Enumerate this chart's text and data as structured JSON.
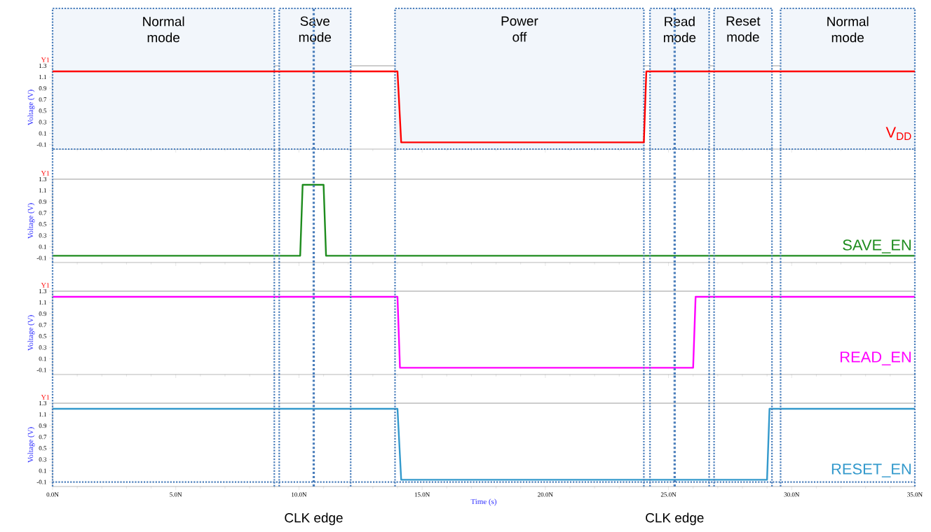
{
  "chart_data": [
    {
      "type": "line",
      "ylabel": "Voltage (V)",
      "annotations": [
        "Y1"
      ],
      "series": [
        {
          "name": "V$_{DD}$",
          "color": "#ff0000",
          "x": [
            0,
            14.0,
            14.15,
            24.0,
            24.1,
            35
          ],
          "values": [
            1.2,
            1.2,
            -0.06,
            -0.06,
            1.2,
            1.2
          ]
        }
      ],
      "xlim": [
        0,
        35
      ],
      "ylim": [
        -0.18,
        1.3
      ],
      "tick_labels": "y",
      "xticks": [
        {
          "value": 0,
          "label": null
        },
        {
          "value": 5,
          "label": null
        },
        {
          "value": 10,
          "label": null
        },
        {
          "value": 15,
          "label": null
        },
        {
          "value": 20,
          "label": null
        },
        {
          "value": 25,
          "label": null
        },
        {
          "value": 30,
          "label": null
        },
        {
          "value": 35,
          "label": null
        }
      ],
      "yticks": [
        -0.1,
        0.1,
        0.3,
        0.5,
        0.7,
        0.9,
        1.1,
        1.3
      ],
      "bands": [
        {
          "axis": "x",
          "from": 0,
          "to": 9.0,
          "label": "Normal mode",
          "color": "#f2f6fb"
        },
        {
          "axis": "x",
          "from": 9.2,
          "to": 12.1,
          "label": "Save mode",
          "color": "#f2f6fb"
        },
        {
          "axis": "x",
          "from": 13.9,
          "to": 24.0,
          "label": "Power off",
          "color": "#f2f6fb"
        },
        {
          "axis": "x",
          "from": 24.25,
          "to": 26.65,
          "label": "Read mode",
          "color": "#f2f6fb"
        },
        {
          "axis": "x",
          "from": 26.85,
          "to": 29.2,
          "label": "Reset mode",
          "color": "#f2f6fb"
        },
        {
          "axis": "x",
          "from": 29.55,
          "to": 35,
          "label": "Normal mode",
          "color": "#f2f6fb"
        }
      ],
      "ref_lines": [
        {
          "axis": "x",
          "value": 10.6,
          "color": "#4a7ebb",
          "line_style": "dashed"
        },
        {
          "axis": "x",
          "value": 25.25,
          "color": "#4a7ebb",
          "line_style": "dashed"
        }
      ]
    },
    {
      "type": "line",
      "ylabel": "Voltage (V)",
      "annotations": [
        "Y1"
      ],
      "series": [
        {
          "name": "SAVE_EN",
          "color": "#1e8c1e",
          "x": [
            0,
            10.05,
            10.15,
            11.0,
            11.1,
            35
          ],
          "values": [
            -0.06,
            -0.06,
            1.2,
            1.2,
            -0.06,
            -0.06
          ]
        }
      ],
      "xlim": [
        0,
        35
      ],
      "ylim": [
        -0.18,
        1.3
      ],
      "tick_labels": "y",
      "xticks": [
        {
          "value": 0,
          "label": null
        },
        {
          "value": 5,
          "label": null
        },
        {
          "value": 10,
          "label": null
        },
        {
          "value": 15,
          "label": null
        },
        {
          "value": 20,
          "label": null
        },
        {
          "value": 25,
          "label": null
        },
        {
          "value": 30,
          "label": null
        },
        {
          "value": 35,
          "label": null
        }
      ],
      "yticks": [
        -0.1,
        0.1,
        0.3,
        0.5,
        0.7,
        0.9,
        1.1,
        1.3
      ],
      "ref_lines": [
        {
          "axis": "x",
          "value": 10.6,
          "color": "#4a7ebb",
          "line_style": "dashed"
        },
        {
          "axis": "x",
          "value": 25.25,
          "color": "#4a7ebb",
          "line_style": "dashed"
        },
        {
          "axis": "x",
          "value": 0,
          "color": "#4a7ebb",
          "line_style": "dotted"
        },
        {
          "axis": "x",
          "value": 9.0,
          "color": "#4a7ebb",
          "line_style": "dotted"
        },
        {
          "axis": "x",
          "value": 9.2,
          "color": "#4a7ebb",
          "line_style": "dotted"
        },
        {
          "axis": "x",
          "value": 12.1,
          "color": "#4a7ebb",
          "line_style": "dotted"
        },
        {
          "axis": "x",
          "value": 13.9,
          "color": "#4a7ebb",
          "line_style": "dotted"
        },
        {
          "axis": "x",
          "value": 24.0,
          "color": "#4a7ebb",
          "line_style": "dotted"
        },
        {
          "axis": "x",
          "value": 24.25,
          "color": "#4a7ebb",
          "line_style": "dotted"
        },
        {
          "axis": "x",
          "value": 26.65,
          "color": "#4a7ebb",
          "line_style": "dotted"
        },
        {
          "axis": "x",
          "value": 26.85,
          "color": "#4a7ebb",
          "line_style": "dotted"
        },
        {
          "axis": "x",
          "value": 29.2,
          "color": "#4a7ebb",
          "line_style": "dotted"
        },
        {
          "axis": "x",
          "value": 29.55,
          "color": "#4a7ebb",
          "line_style": "dotted"
        },
        {
          "axis": "x",
          "value": 35,
          "color": "#4a7ebb",
          "line_style": "dotted"
        }
      ]
    },
    {
      "type": "line",
      "ylabel": "Voltage (V)",
      "annotations": [
        "Y1"
      ],
      "series": [
        {
          "name": "READ_EN",
          "color": "#ff00ff",
          "x": [
            0,
            14.0,
            14.1,
            26.0,
            26.1,
            35
          ],
          "values": [
            1.2,
            1.2,
            -0.06,
            -0.06,
            1.2,
            1.2
          ]
        }
      ],
      "xlim": [
        0,
        35
      ],
      "ylim": [
        -0.18,
        1.3
      ],
      "tick_labels": "y",
      "xticks": [
        {
          "value": 0,
          "label": null
        },
        {
          "value": 5,
          "label": null
        },
        {
          "value": 10,
          "label": null
        },
        {
          "value": 15,
          "label": null
        },
        {
          "value": 20,
          "label": null
        },
        {
          "value": 25,
          "label": null
        },
        {
          "value": 30,
          "label": null
        },
        {
          "value": 35,
          "label": null
        }
      ],
      "yticks": [
        -0.1,
        0.1,
        0.3,
        0.5,
        0.7,
        0.9,
        1.1,
        1.3
      ],
      "ref_lines": [
        {
          "axis": "x",
          "value": 10.6,
          "color": "#4a7ebb",
          "line_style": "dashed"
        },
        {
          "axis": "x",
          "value": 25.25,
          "color": "#4a7ebb",
          "line_style": "dashed"
        },
        {
          "axis": "x",
          "value": 0,
          "color": "#4a7ebb",
          "line_style": "dotted"
        },
        {
          "axis": "x",
          "value": 9.0,
          "color": "#4a7ebb",
          "line_style": "dotted"
        },
        {
          "axis": "x",
          "value": 9.2,
          "color": "#4a7ebb",
          "line_style": "dotted"
        },
        {
          "axis": "x",
          "value": 12.1,
          "color": "#4a7ebb",
          "line_style": "dotted"
        },
        {
          "axis": "x",
          "value": 13.9,
          "color": "#4a7ebb",
          "line_style": "dotted"
        },
        {
          "axis": "x",
          "value": 24.0,
          "color": "#4a7ebb",
          "line_style": "dotted"
        },
        {
          "axis": "x",
          "value": 24.25,
          "color": "#4a7ebb",
          "line_style": "dotted"
        },
        {
          "axis": "x",
          "value": 26.65,
          "color": "#4a7ebb",
          "line_style": "dotted"
        },
        {
          "axis": "x",
          "value": 26.85,
          "color": "#4a7ebb",
          "line_style": "dotted"
        },
        {
          "axis": "x",
          "value": 29.2,
          "color": "#4a7ebb",
          "line_style": "dotted"
        },
        {
          "axis": "x",
          "value": 29.55,
          "color": "#4a7ebb",
          "line_style": "dotted"
        },
        {
          "axis": "x",
          "value": 35,
          "color": "#4a7ebb",
          "line_style": "dotted"
        }
      ]
    },
    {
      "type": "line",
      "ylabel": "Voltage (V)",
      "xlabel": "Time (s)",
      "annotations": [
        "Y1"
      ],
      "series": [
        {
          "name": "RESET_EN",
          "color": "#3399cc",
          "x": [
            0,
            14.0,
            14.15,
            29.0,
            29.1,
            35
          ],
          "values": [
            1.2,
            1.2,
            -0.06,
            -0.06,
            1.2,
            1.2
          ]
        }
      ],
      "xlim": [
        0,
        35
      ],
      "ylim": [
        -0.18,
        1.3
      ],
      "xticks": [
        {
          "value": 0,
          "label": "0.0N"
        },
        {
          "value": 5,
          "label": "5.0N"
        },
        {
          "value": 10,
          "label": "10.0N"
        },
        {
          "value": 15,
          "label": "15.0N"
        },
        {
          "value": 20,
          "label": "20.0N"
        },
        {
          "value": 25,
          "label": "25.0N"
        },
        {
          "value": 30,
          "label": "30.0N"
        },
        {
          "value": 35,
          "label": "35.0N"
        }
      ],
      "yticks": [
        -0.1,
        0.1,
        0.3,
        0.5,
        0.7,
        0.9,
        1.1,
        1.3
      ],
      "ref_lines": [
        {
          "axis": "x",
          "value": 10.6,
          "label": "CLK edge",
          "color": "#4a7ebb",
          "line_style": "dashed"
        },
        {
          "axis": "x",
          "value": 25.25,
          "label": "CLK edge",
          "color": "#4a7ebb",
          "line_style": "dashed"
        },
        {
          "axis": "x",
          "value": 0,
          "color": "#4a7ebb",
          "line_style": "dotted"
        },
        {
          "axis": "x",
          "value": 9.0,
          "color": "#4a7ebb",
          "line_style": "dotted"
        },
        {
          "axis": "x",
          "value": 9.2,
          "color": "#4a7ebb",
          "line_style": "dotted"
        },
        {
          "axis": "x",
          "value": 12.1,
          "color": "#4a7ebb",
          "line_style": "dotted"
        },
        {
          "axis": "x",
          "value": 13.9,
          "color": "#4a7ebb",
          "line_style": "dotted"
        },
        {
          "axis": "x",
          "value": 24.0,
          "color": "#4a7ebb",
          "line_style": "dotted"
        },
        {
          "axis": "x",
          "value": 24.25,
          "color": "#4a7ebb",
          "line_style": "dotted"
        },
        {
          "axis": "x",
          "value": 26.65,
          "color": "#4a7ebb",
          "line_style": "dotted"
        },
        {
          "axis": "x",
          "value": 26.85,
          "color": "#4a7ebb",
          "line_style": "dotted"
        },
        {
          "axis": "x",
          "value": 29.2,
          "color": "#4a7ebb",
          "line_style": "dotted"
        },
        {
          "axis": "x",
          "value": 29.55,
          "color": "#4a7ebb",
          "line_style": "dotted"
        },
        {
          "axis": "x",
          "value": 35,
          "color": "#4a7ebb",
          "line_style": "dotted"
        },
        {
          "axis": "y",
          "value": -0.1,
          "color": "#4a7ebb",
          "line_style": "dotted"
        }
      ]
    }
  ]
}
